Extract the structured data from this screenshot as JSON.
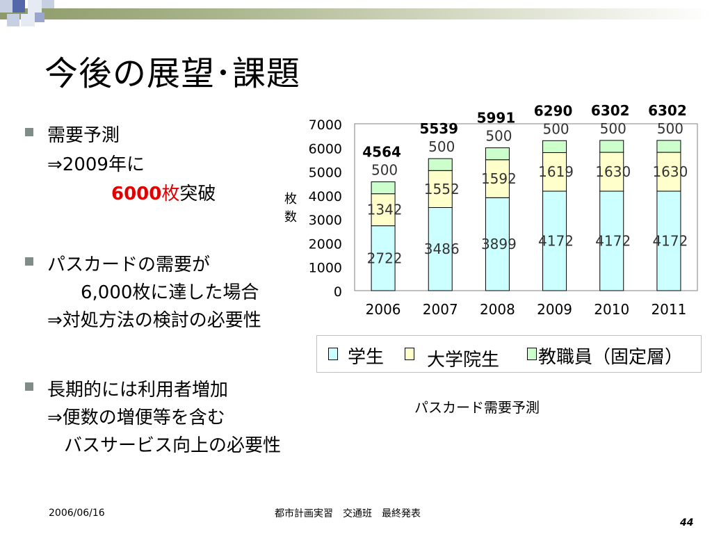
{
  "slide": {
    "title": "今後の展望･課題",
    "footer_date": "2006/06/16",
    "footer_center": "都市計画実習　交通班　最終発表",
    "page_number": "44",
    "caption": "パスカード需要予測"
  },
  "bullets": [
    {
      "line1": "需要予測",
      "line2": "⇒2009年に",
      "line3_red_a": "6000",
      "line3_red_b": "枚",
      "line3_rest": "突破"
    },
    {
      "line1": "パスカードの需要が",
      "line2": "6,000枚に達した場合",
      "line3": "⇒対処方法の検討の必要性"
    },
    {
      "line1": "長期的には利用者増加",
      "line2": "⇒便数の増便等を含む",
      "line3": "バスサービス向上の必要性"
    }
  ],
  "legend": {
    "student": "学生",
    "grad": "大学院生",
    "staff": "教職員（固定層）"
  },
  "colors": {
    "student": "#ccffff",
    "grad": "#ffffcc",
    "staff": "#ccffcc",
    "red": "#e00000",
    "band": "#8d9a68"
  },
  "chart_data": {
    "type": "bar",
    "stacked": true,
    "categories": [
      "2006",
      "2007",
      "2008",
      "2009",
      "2010",
      "2011"
    ],
    "series": [
      {
        "name": "学生",
        "values": [
          2722,
          3486,
          3899,
          4172,
          4172,
          4172
        ]
      },
      {
        "name": "大学院生",
        "values": [
          1342,
          1552,
          1592,
          1619,
          1630,
          1630
        ]
      },
      {
        "name": "教職員（固定層）",
        "values": [
          500,
          500,
          500,
          500,
          500,
          500
        ]
      }
    ],
    "totals": [
      4564,
      5539,
      5991,
      6290,
      6302,
      6302
    ],
    "ylabel": "枚数",
    "ylim": [
      0,
      7000
    ],
    "yticks": [
      0,
      1000,
      2000,
      3000,
      4000,
      5000,
      6000,
      7000
    ],
    "grid": false,
    "legend_position": "bottom"
  }
}
